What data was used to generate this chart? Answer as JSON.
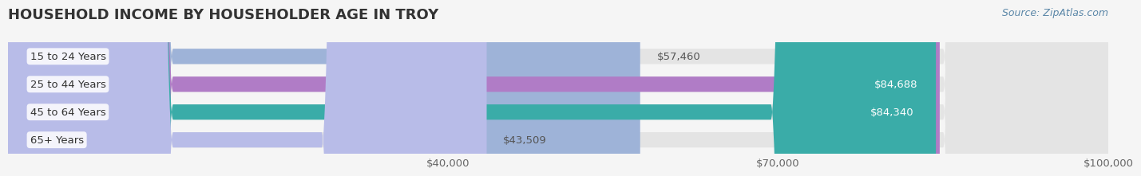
{
  "title": "HOUSEHOLD INCOME BY HOUSEHOLDER AGE IN TROY",
  "source": "Source: ZipAtlas.com",
  "categories": [
    "15 to 24 Years",
    "25 to 44 Years",
    "45 to 64 Years",
    "65+ Years"
  ],
  "values": [
    57460,
    84688,
    84340,
    43509
  ],
  "bar_colors": [
    "#9eb3d8",
    "#b07cc6",
    "#3aaca8",
    "#b8bce8"
  ],
  "bar_bg_color": "#e8e8e8",
  "label_colors": [
    "#555555",
    "#ffffff",
    "#ffffff",
    "#555555"
  ],
  "background_color": "#f5f5f5",
  "plot_bg_color": "#f5f5f5",
  "xmin": 0,
  "xmax": 100000,
  "xticks": [
    40000,
    70000,
    100000
  ],
  "xtick_labels": [
    "$40,000",
    "$70,000",
    "$100,000"
  ],
  "title_fontsize": 13,
  "tick_fontsize": 9.5,
  "source_fontsize": 9,
  "bar_label_fontsize": 9.5,
  "category_fontsize": 9.5
}
